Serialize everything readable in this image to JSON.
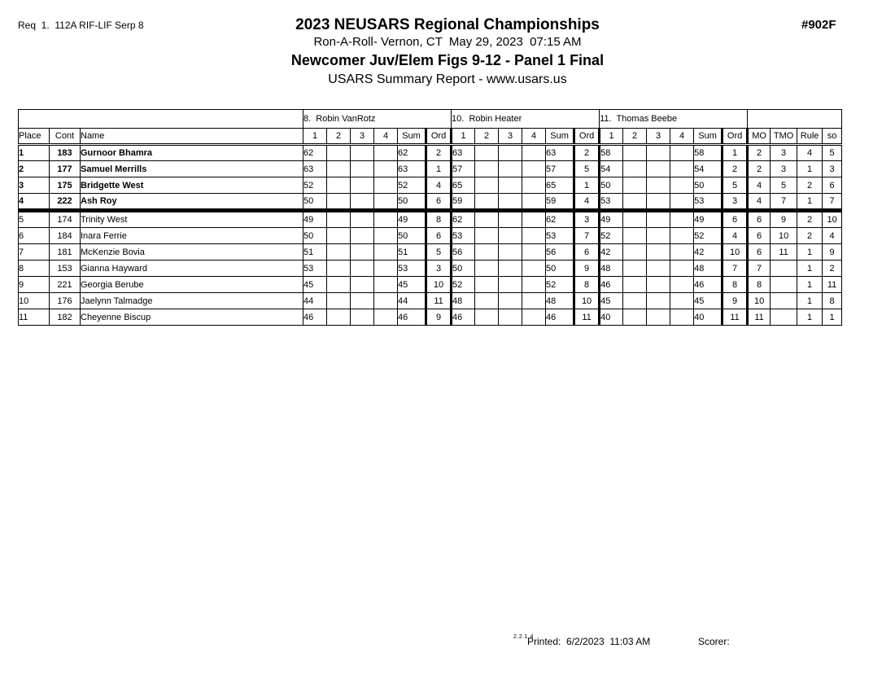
{
  "header": {
    "req_label": "Req  1.  112A RIF-LIF Serp 8",
    "doc_number": "#902F",
    "title": "2023 NEUSARS Regional Championships",
    "subtitle": "Ron-A-Roll- Vernon, CT  May 29, 2023  07:15 AM",
    "event_title": "Newcomer Juv/Elem Figs 9-12 - Panel 1 Final",
    "report_title": "USARS Summary Report - www.usars.us"
  },
  "table": {
    "judges": [
      "8.  Robin VanRotz",
      "10.  Robin Heater",
      "11.  Thomas Beebe"
    ],
    "header": {
      "place": "Place",
      "cont": "Cont",
      "name": "Name",
      "s1": "1",
      "s2": "2",
      "s3": "3",
      "s4": "4",
      "sum": "Sum",
      "ord": "Ord",
      "mo": "MO",
      "tmo": "TMO",
      "rule": "Rule",
      "so": "so"
    },
    "rows": [
      {
        "place": "1",
        "cont": "183",
        "name": "Gurnoor Bhamra",
        "bold": true,
        "judges": [
          [
            "62",
            "",
            "",
            "",
            "62",
            "2"
          ],
          [
            "63",
            "",
            "",
            "",
            "63",
            "2"
          ],
          [
            "58",
            "",
            "",
            "",
            "58",
            "1"
          ]
        ],
        "mo": "2",
        "tmo": "3",
        "rule": "4",
        "so": "5"
      },
      {
        "place": "2",
        "cont": "177",
        "name": "Samuel Merrills",
        "bold": true,
        "judges": [
          [
            "63",
            "",
            "",
            "",
            "63",
            "1"
          ],
          [
            "57",
            "",
            "",
            "",
            "57",
            "5"
          ],
          [
            "54",
            "",
            "",
            "",
            "54",
            "2"
          ]
        ],
        "mo": "2",
        "tmo": "3",
        "rule": "1",
        "so": "3"
      },
      {
        "place": "3",
        "cont": "175",
        "name": "Bridgette West",
        "bold": true,
        "judges": [
          [
            "52",
            "",
            "",
            "",
            "52",
            "4"
          ],
          [
            "65",
            "",
            "",
            "",
            "65",
            "1"
          ],
          [
            "50",
            "",
            "",
            "",
            "50",
            "5"
          ]
        ],
        "mo": "4",
        "tmo": "5",
        "rule": "2",
        "so": "6"
      },
      {
        "place": "4",
        "cont": "222",
        "name": "Ash Roy",
        "bold": true,
        "judges": [
          [
            "50",
            "",
            "",
            "",
            "50",
            "6"
          ],
          [
            "59",
            "",
            "",
            "",
            "59",
            "4"
          ],
          [
            "53",
            "",
            "",
            "",
            "53",
            "3"
          ]
        ],
        "mo": "4",
        "tmo": "7",
        "rule": "1",
        "so": "7"
      },
      {
        "place": "5",
        "cont": "174",
        "name": "Trinity West",
        "bold": false,
        "judges": [
          [
            "49",
            "",
            "",
            "",
            "49",
            "8"
          ],
          [
            "62",
            "",
            "",
            "",
            "62",
            "3"
          ],
          [
            "49",
            "",
            "",
            "",
            "49",
            "6"
          ]
        ],
        "mo": "6",
        "tmo": "9",
        "rule": "2",
        "so": "10"
      },
      {
        "place": "6",
        "cont": "184",
        "name": "Inara Ferrie",
        "bold": false,
        "judges": [
          [
            "50",
            "",
            "",
            "",
            "50",
            "6"
          ],
          [
            "53",
            "",
            "",
            "",
            "53",
            "7"
          ],
          [
            "52",
            "",
            "",
            "",
            "52",
            "4"
          ]
        ],
        "mo": "6",
        "tmo": "10",
        "rule": "2",
        "so": "4"
      },
      {
        "place": "7",
        "cont": "181",
        "name": "McKenzie Bovia",
        "bold": false,
        "judges": [
          [
            "51",
            "",
            "",
            "",
            "51",
            "5"
          ],
          [
            "56",
            "",
            "",
            "",
            "56",
            "6"
          ],
          [
            "42",
            "",
            "",
            "",
            "42",
            "10"
          ]
        ],
        "mo": "6",
        "tmo": "11",
        "rule": "1",
        "so": "9"
      },
      {
        "place": "8",
        "cont": "153",
        "name": "Gianna Hayward",
        "bold": false,
        "judges": [
          [
            "53",
            "",
            "",
            "",
            "53",
            "3"
          ],
          [
            "50",
            "",
            "",
            "",
            "50",
            "9"
          ],
          [
            "48",
            "",
            "",
            "",
            "48",
            "7"
          ]
        ],
        "mo": "7",
        "tmo": "",
        "rule": "1",
        "so": "2"
      },
      {
        "place": "9",
        "cont": "221",
        "name": "Georgia Berube",
        "bold": false,
        "judges": [
          [
            "45",
            "",
            "",
            "",
            "45",
            "10"
          ],
          [
            "52",
            "",
            "",
            "",
            "52",
            "8"
          ],
          [
            "46",
            "",
            "",
            "",
            "46",
            "8"
          ]
        ],
        "mo": "8",
        "tmo": "",
        "rule": "1",
        "so": "11"
      },
      {
        "place": "10",
        "cont": "176",
        "name": "Jaelynn Talmadge",
        "bold": false,
        "judges": [
          [
            "44",
            "",
            "",
            "",
            "44",
            "11"
          ],
          [
            "48",
            "",
            "",
            "",
            "48",
            "10"
          ],
          [
            "45",
            "",
            "",
            "",
            "45",
            "9"
          ]
        ],
        "mo": "10",
        "tmo": "",
        "rule": "1",
        "so": "8"
      },
      {
        "place": "11",
        "cont": "182",
        "name": "Cheyenne Biscup",
        "bold": false,
        "judges": [
          [
            "46",
            "",
            "",
            "",
            "46",
            "9"
          ],
          [
            "46",
            "",
            "",
            "",
            "46",
            "11"
          ],
          [
            "40",
            "",
            "",
            "",
            "40",
            "11"
          ]
        ],
        "mo": "11",
        "tmo": "",
        "rule": "1",
        "so": "1"
      }
    ]
  },
  "footer": {
    "version": "2.2.1.4",
    "printed": "Printed:  6/2/2023  11:03 AM",
    "scorer": "Scorer:"
  }
}
